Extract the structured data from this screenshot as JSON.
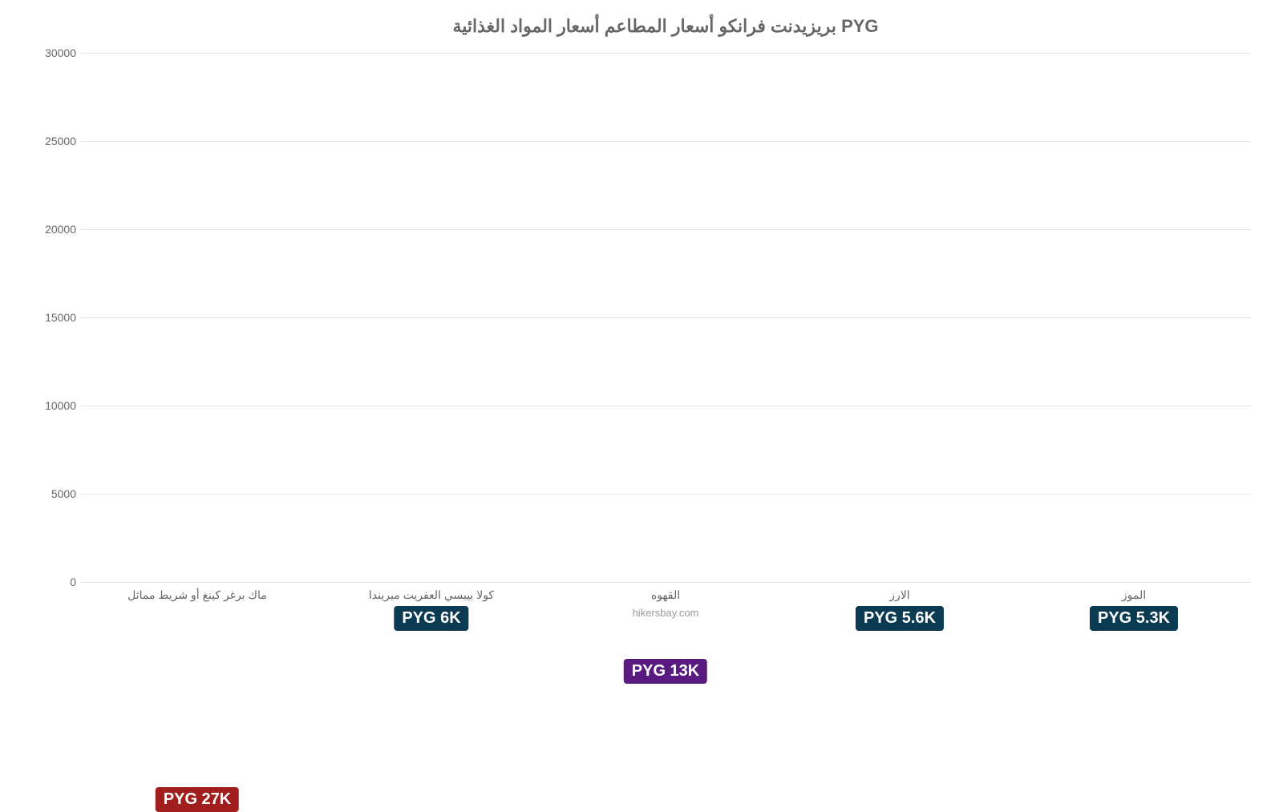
{
  "chart": {
    "type": "bar",
    "title": "بريزيدنت فرانكو أسعار المطاعم أسعار المواد الغذائية PYG",
    "title_fontsize": 22,
    "title_color": "#666666",
    "background_color": "#ffffff",
    "grid_color": "#e6e6e6",
    "axis_text_color": "#666666",
    "axis_fontsize": 14,
    "credit": "hikersbay.com",
    "credit_fontsize": 13,
    "credit_color": "#999999",
    "ylim": [
      0,
      30000
    ],
    "ytick_step": 5000,
    "yticks": [
      0,
      5000,
      10000,
      15000,
      20000,
      25000,
      30000
    ],
    "bar_width_pct": 75,
    "label_badge_bg": "#0b3a53",
    "label_badge_radius": 4,
    "label_fontsize": 20,
    "bars": [
      {
        "category": "ماك برغر كينغ أو شريط مماثل",
        "value": 27000,
        "color": "#ed3833",
        "value_label": "PYG 27K",
        "label_badge_bg": "#a11e1e",
        "label_offset": 256
      },
      {
        "category": "كولا بيبسي العفريت ميريندا",
        "value": 6000,
        "color": "#2e8ece",
        "value_label": "PYG 6K",
        "label_badge_bg": "#0b3a53",
        "label_offset": 30
      },
      {
        "category": "القهوه",
        "value": 12600,
        "color": "#a033e0",
        "value_label": "PYG 13K",
        "label_badge_bg": "#5a1b80",
        "label_offset": 96
      },
      {
        "category": "الارز",
        "value": 5600,
        "color": "#2e8ece",
        "value_label": "PYG 5.6K",
        "label_badge_bg": "#0b3a53",
        "label_offset": 30
      },
      {
        "category": "الموز",
        "value": 5300,
        "color": "#2e8ece",
        "value_label": "PYG 5.3K",
        "label_badge_bg": "#0b3a53",
        "label_offset": 30
      }
    ]
  }
}
